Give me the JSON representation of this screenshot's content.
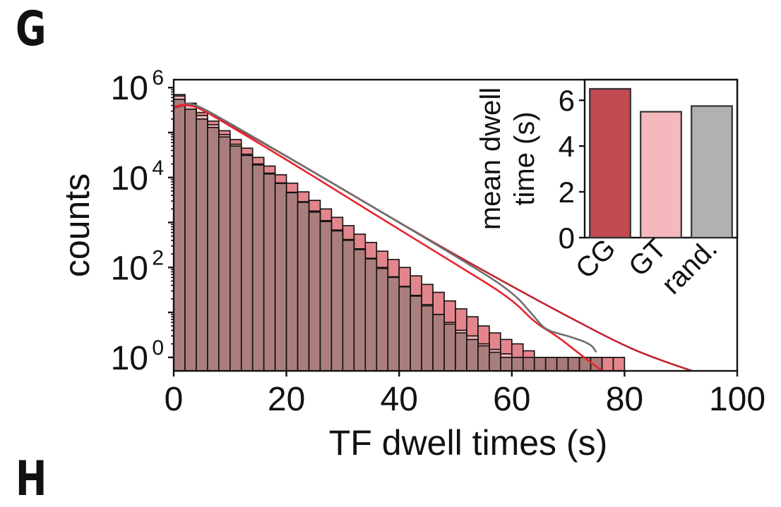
{
  "panel_label": "G",
  "next_panel_label": "H",
  "chart_data": [
    {
      "type": "bar",
      "subtype": "histogram",
      "xlabel": "TF dwell times (s)",
      "ylabel": "counts",
      "xlim": [
        0,
        100
      ],
      "ylim": [
        0.5,
        1500000
      ],
      "yscale": "log",
      "xticks": [
        0,
        20,
        40,
        60,
        80,
        100
      ],
      "xtick_labels": [
        "0",
        "20",
        "40",
        "60",
        "80",
        "100"
      ],
      "yticks": [
        1,
        100,
        10000,
        1000000
      ],
      "ytick_labels": [
        {
          "base": "10",
          "exp": "0"
        },
        {
          "base": "10",
          "exp": "2"
        },
        {
          "base": "10",
          "exp": "4"
        },
        {
          "base": "10",
          "exp": "6"
        }
      ],
      "bin_width": 2,
      "series": [
        {
          "color": "#e07880",
          "bins_start": 0,
          "values": [
            700000,
            450000,
            280000,
            180000,
            110000,
            70000,
            45000,
            28000,
            18000,
            11500,
            7500,
            4800,
            3100,
            2000,
            1300,
            850,
            550,
            360,
            230,
            150,
            100,
            65,
            42,
            28,
            18,
            12,
            8,
            5,
            3.5,
            2.5,
            2,
            1.4,
            1,
            1,
            1,
            1,
            1,
            1,
            1,
            1,
            0,
            0,
            0,
            0,
            0,
            0,
            0,
            0,
            0,
            0
          ]
        },
        {
          "color": "#f2b8bc",
          "bins_start": 0,
          "values": [
            650000,
            400000,
            240000,
            150000,
            90000,
            55000,
            33000,
            20000,
            12500,
            7600,
            4700,
            2900,
            1800,
            1100,
            680,
            420,
            260,
            160,
            100,
            62,
            38,
            24,
            15,
            9,
            6,
            4,
            3,
            2,
            1.5,
            1.2,
            1,
            0,
            0,
            0,
            0,
            0,
            0,
            0,
            0,
            0,
            0,
            0,
            0,
            0,
            0,
            0,
            0,
            0,
            0,
            0
          ]
        },
        {
          "color": "#a37878",
          "bins_start": 0,
          "values": [
            550000,
            330000,
            200000,
            130000,
            80000,
            50000,
            31000,
            19000,
            12000,
            7400,
            4600,
            2800,
            1700,
            1050,
            650,
            400,
            250,
            155,
            95,
            60,
            37,
            23,
            14,
            9,
            5.5,
            3.5,
            2.5,
            1.8,
            1.3,
            1,
            1,
            1,
            1,
            1,
            1,
            1,
            1,
            1,
            0,
            0,
            0,
            0,
            0,
            0,
            0,
            0,
            0,
            0,
            0,
            0
          ]
        }
      ],
      "fits": [
        {
          "color": "#c0232d",
          "points": [
            [
              0,
              350000
            ],
            [
              2,
              420000
            ],
            [
              4,
              380000
            ],
            [
              10,
              150000
            ],
            [
              20,
              30000
            ],
            [
              30,
              5500
            ],
            [
              40,
              1000
            ],
            [
              50,
              190
            ],
            [
              60,
              38
            ],
            [
              70,
              8
            ],
            [
              80,
              1.8
            ],
            [
              86,
              0.9
            ],
            [
              92,
              0.5
            ]
          ]
        },
        {
          "color": "#e8232d",
          "points": [
            [
              0,
              370000
            ],
            [
              2,
              430000
            ],
            [
              4,
              390000
            ],
            [
              10,
              140000
            ],
            [
              20,
              25000
            ],
            [
              30,
              4200
            ],
            [
              40,
              700
            ],
            [
              50,
              120
            ],
            [
              60,
              20
            ],
            [
              64,
              6
            ],
            [
              68,
              3
            ],
            [
              72,
              1.2
            ],
            [
              76,
              0.5
            ]
          ]
        },
        {
          "color": "#6e6e6e",
          "points": [
            [
              2,
              450000
            ],
            [
              4,
              420000
            ],
            [
              10,
              160000
            ],
            [
              20,
              30000
            ],
            [
              30,
              5500
            ],
            [
              40,
              1000
            ],
            [
              50,
              180
            ],
            [
              60,
              30
            ],
            [
              64,
              8
            ],
            [
              66,
              4
            ],
            [
              70,
              3
            ],
            [
              74,
              2
            ],
            [
              75,
              1.3
            ]
          ]
        }
      ]
    },
    {
      "type": "bar",
      "ylabel": "mean dwell\ntime (s)",
      "ylabel_lines": [
        "mean dwell",
        "time (s)"
      ],
      "categories": [
        "CG",
        "GT",
        "rand."
      ],
      "values": [
        6.5,
        5.5,
        5.75
      ],
      "colors": [
        "#c34a52",
        "#f5b9bd",
        "#b1b1b1"
      ],
      "ylim": [
        0,
        6.9
      ],
      "yticks": [
        0,
        2,
        4,
        6
      ],
      "ytick_labels": [
        "0",
        "2",
        "4",
        "6"
      ]
    }
  ]
}
